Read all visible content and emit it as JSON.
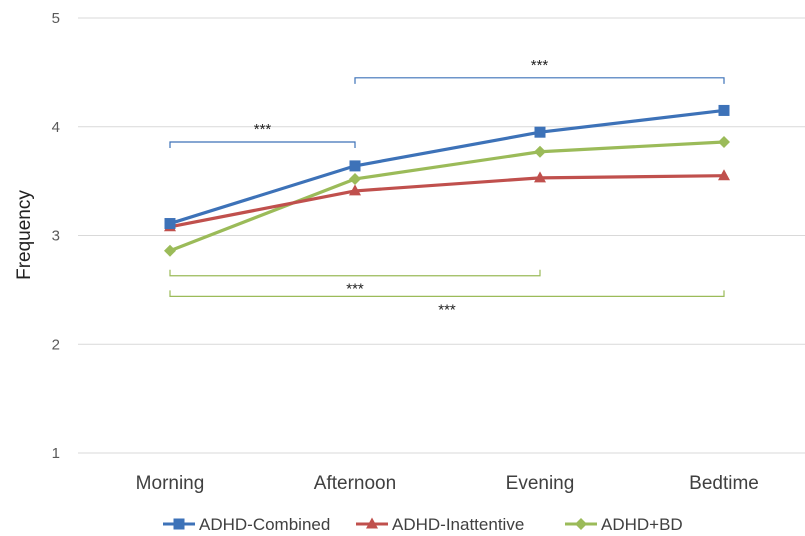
{
  "chart_data": {
    "type": "line",
    "categories": [
      "Morning",
      "Afternoon",
      "Evening",
      "Bedtime"
    ],
    "ylabel": "Frequency",
    "ylim": [
      1,
      5
    ],
    "yticks": [
      1,
      2,
      3,
      4,
      5
    ],
    "grid": true,
    "legend_position": "bottom",
    "series": [
      {
        "name": "ADHD-Combined",
        "values": [
          3.11,
          3.64,
          3.95,
          4.15
        ],
        "color": "#3d72b8",
        "marker": "square"
      },
      {
        "name": "ADHD-Inattentive",
        "values": [
          3.08,
          3.41,
          3.53,
          3.55
        ],
        "color": "#c0504d",
        "marker": "triangle"
      },
      {
        "name": "ADHD+BD",
        "values": [
          2.86,
          3.52,
          3.77,
          3.86
        ],
        "color": "#9bbb59",
        "marker": "diamond"
      }
    ],
    "significance": [
      {
        "label": "***",
        "from": "Morning",
        "to": "Afternoon",
        "color": "#3d72b8",
        "y": 3.86,
        "orientation": "down"
      },
      {
        "label": "***",
        "from": "Afternoon",
        "to": "Bedtime",
        "color": "#3d72b8",
        "y": 4.45,
        "orientation": "down"
      },
      {
        "label": "***",
        "from": "Morning",
        "to": "Evening",
        "color": "#9bbb59",
        "y": 2.63,
        "orientation": "up"
      },
      {
        "label": "***",
        "from": "Morning",
        "to": "Bedtime",
        "color": "#9bbb59",
        "y": 2.44,
        "orientation": "up"
      }
    ]
  }
}
